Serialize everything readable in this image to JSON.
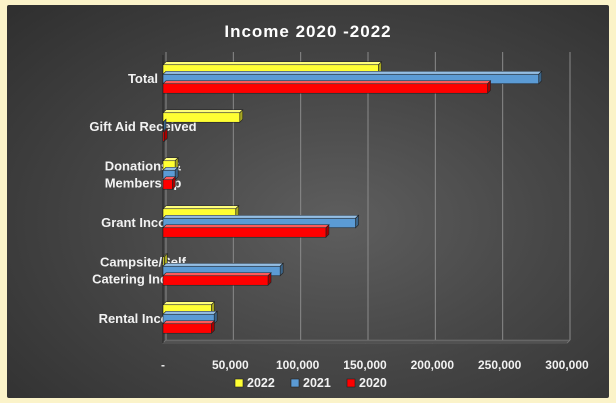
{
  "chart_data": {
    "type": "bar",
    "orientation": "horizontal",
    "style": "3d-clustered",
    "title": "Income 2020 -2022",
    "xlabel": "",
    "ylabel": "",
    "xlim": [
      0,
      300000
    ],
    "x_ticks": [
      "-",
      "50,000",
      "100,000",
      "150,000",
      "200,000",
      "250,000",
      "300,000"
    ],
    "grid": true,
    "legend_position": "bottom",
    "categories": [
      "Total",
      "Gift Aid Received",
      "Donations & Membership",
      "Grant Income",
      "Campsite/Self Catering  Income",
      "Rental Income"
    ],
    "category_lines": [
      [
        "Total"
      ],
      [
        "Gift Aid Received"
      ],
      [
        "Donations &",
        "Membership"
      ],
      [
        "Grant Income"
      ],
      [
        "Campsite/Self",
        "Catering  Income"
      ],
      [
        "Rental Income"
      ]
    ],
    "series": [
      {
        "name": "2022",
        "color": "#ffff33",
        "values": [
          160000,
          57000,
          9000,
          54000,
          1000,
          36000
        ]
      },
      {
        "name": "2021",
        "color": "#5b9bd5",
        "values": [
          279000,
          0,
          9000,
          143000,
          87000,
          38000
        ]
      },
      {
        "name": "2020",
        "color": "#ff0000",
        "values": [
          241000,
          1000,
          7000,
          121000,
          78000,
          36000
        ]
      }
    ]
  }
}
